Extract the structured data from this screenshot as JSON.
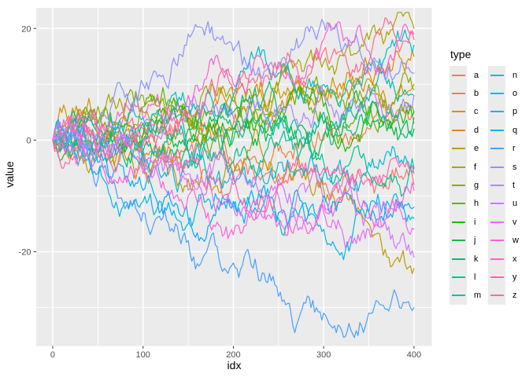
{
  "chart_data": {
    "type": "line",
    "title": "",
    "xlabel": "idx",
    "ylabel": "value",
    "legend_title": "type",
    "legend_position": "right",
    "grid": true,
    "panel_background": "#EBEBEB",
    "grid_color": "#FFFFFF",
    "axis_text_color": "#4D4D4D",
    "tick_color": "#333333",
    "legend_key_fill": "#EBEBEB",
    "xlim": [
      -18.3,
      419.7
    ],
    "ylim": [
      -36.9,
      23.7
    ],
    "x_ticks": [
      0,
      100,
      200,
      300,
      400
    ],
    "x_tick_labels": [
      "0",
      "100",
      "200",
      "300",
      "400"
    ],
    "x_minor_ticks": [
      50,
      150,
      250,
      350
    ],
    "y_ticks": [
      20,
      0,
      -20
    ],
    "y_tick_labels": [
      "20",
      "0",
      "-20"
    ],
    "y_minor_ticks": [
      10,
      -10,
      -30
    ],
    "keyframe_idx": [
      0,
      50,
      100,
      150,
      200,
      250,
      300,
      350,
      400
    ],
    "series": [
      {
        "name": "a",
        "color": "#F8766D",
        "values": [
          0,
          -1,
          1,
          -2,
          -4,
          -6,
          -8,
          -7,
          -8
        ]
      },
      {
        "name": "b",
        "color": "#ED8141",
        "values": [
          0,
          -1,
          -3,
          -5,
          -4,
          -2,
          0,
          2,
          3
        ]
      },
      {
        "name": "c",
        "color": "#E18A00",
        "values": [
          0,
          1,
          -2,
          0,
          3,
          5,
          8,
          12,
          15
        ]
      },
      {
        "name": "d",
        "color": "#D19300",
        "values": [
          0,
          2,
          1,
          4,
          7,
          9,
          8,
          11,
          10
        ]
      },
      {
        "name": "e",
        "color": "#BE9C00",
        "values": [
          0,
          -2,
          -5,
          -7,
          -6,
          -8,
          -9,
          -15,
          -23
        ]
      },
      {
        "name": "f",
        "color": "#A7A400",
        "values": [
          0,
          3,
          5,
          4,
          8,
          10,
          14,
          18,
          20
        ]
      },
      {
        "name": "g",
        "color": "#8CAB00",
        "values": [
          0,
          6,
          8,
          5,
          7,
          10,
          9,
          10,
          9
        ]
      },
      {
        "name": "h",
        "color": "#64B200",
        "values": [
          0,
          3,
          6,
          4,
          2,
          5,
          3,
          6,
          5
        ]
      },
      {
        "name": "i",
        "color": "#24B700",
        "values": [
          0,
          -2,
          1,
          3,
          2,
          4,
          6,
          4,
          5
        ]
      },
      {
        "name": "j",
        "color": "#00BB44",
        "values": [
          0,
          1,
          3,
          2,
          5,
          3,
          1,
          3,
          2
        ]
      },
      {
        "name": "k",
        "color": "#00BE70",
        "values": [
          0,
          -1,
          -2,
          0,
          2,
          4,
          3,
          5,
          4
        ]
      },
      {
        "name": "l",
        "color": "#00C092",
        "values": [
          0,
          2,
          0,
          -2,
          -4,
          -1,
          -4,
          -6,
          -5
        ]
      },
      {
        "name": "m",
        "color": "#00C1AB",
        "values": [
          0,
          -2,
          -4,
          -2,
          0,
          2,
          5,
          7,
          8
        ]
      },
      {
        "name": "n",
        "color": "#00BFC4",
        "values": [
          0,
          1,
          4,
          6,
          8,
          12,
          10,
          14,
          17
        ]
      },
      {
        "name": "o",
        "color": "#00BBDA",
        "values": [
          0,
          -3,
          -2,
          -5,
          -7,
          -4,
          -6,
          -4,
          -5
        ]
      },
      {
        "name": "p",
        "color": "#00B5EE",
        "values": [
          0,
          -6,
          -11,
          -15,
          -12,
          -14,
          -16,
          -13,
          -14
        ]
      },
      {
        "name": "q",
        "color": "#00ACFC",
        "values": [
          0,
          -4,
          -9,
          -14,
          -11,
          -13,
          -10,
          -13,
          -12
        ]
      },
      {
        "name": "r",
        "color": "#47A1FF",
        "values": [
          0,
          -7,
          -13,
          -18,
          -22,
          -28,
          -31,
          -31,
          -30
        ]
      },
      {
        "name": "s",
        "color": "#8B93FF",
        "values": [
          0,
          1,
          10,
          19,
          16,
          14,
          21,
          13,
          12
        ]
      },
      {
        "name": "t",
        "color": "#AE87FF",
        "values": [
          0,
          1,
          3,
          5,
          4,
          6,
          8,
          9,
          8
        ]
      },
      {
        "name": "u",
        "color": "#D575FE",
        "values": [
          0,
          -1,
          -3,
          -6,
          -8,
          -7,
          -11,
          -14,
          -21
        ]
      },
      {
        "name": "v",
        "color": "#E56DF5",
        "values": [
          0,
          -2,
          -6,
          -9,
          -12,
          -10,
          -13,
          -16,
          -16
        ]
      },
      {
        "name": "w",
        "color": "#F962DD",
        "values": [
          0,
          -2,
          -5,
          -10,
          -17,
          -15,
          -12,
          -13,
          -9
        ]
      },
      {
        "name": "x",
        "color": "#FD61CE",
        "values": [
          0,
          2,
          4,
          8,
          10,
          14,
          18,
          16,
          19
        ]
      },
      {
        "name": "y",
        "color": "#FF65AC",
        "values": [
          0,
          -2,
          -1,
          -4,
          -6,
          -8,
          -5,
          -7,
          -6
        ]
      },
      {
        "name": "z",
        "color": "#FD6D8B",
        "values": [
          0,
          1,
          2,
          5,
          9,
          13,
          16,
          14,
          18
        ]
      }
    ]
  }
}
